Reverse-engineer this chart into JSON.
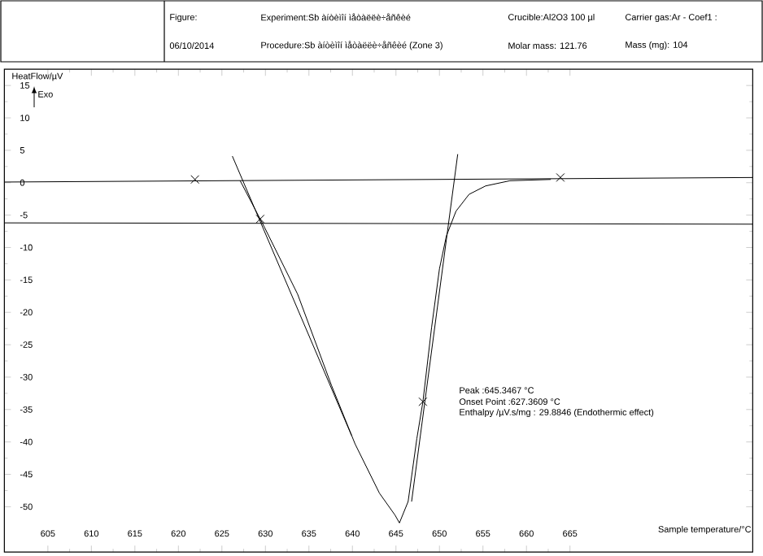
{
  "chart_data": {
    "type": "line",
    "xlabel": "Sample temperature/°C",
    "ylabel": "HeatFlow/µV",
    "xlim": [
      600,
      686
    ],
    "ylim": [
      -57,
      17.5
    ],
    "xticks": [
      605,
      610,
      615,
      620,
      625,
      630,
      635,
      640,
      645,
      650,
      655,
      660,
      665
    ],
    "yticks": [
      -50,
      -45,
      -40,
      -35,
      -30,
      -25,
      -20,
      -15,
      -10,
      -5,
      0,
      5,
      10,
      15
    ],
    "series": [
      {
        "color": "#000000",
        "x": [
          627.1,
          629.9,
          633.7,
          637.6,
          640.3,
          643.1,
          644.9,
          645.4,
          646.4,
          647.4,
          648.1,
          649.1,
          650.0,
          650.8,
          651.9,
          653.4,
          655.3,
          658.1,
          662.8
        ],
        "values": [
          0.3,
          -6.9,
          -17.2,
          -31.3,
          -40.3,
          -47.9,
          -51.3,
          -52.5,
          -49.2,
          -39.5,
          -33.8,
          -22.3,
          -13.3,
          -8.2,
          -4.4,
          -1.8,
          -0.5,
          0.3,
          0.5
        ]
      },
      {
        "color": "#000000",
        "x": [
          600,
          686
        ],
        "values": [
          0.1,
          0.8
        ]
      },
      {
        "color": "#000000",
        "x": [
          600,
          686
        ],
        "values": [
          -6.2,
          -6.4
        ]
      },
      {
        "color": "#000000",
        "x": [
          626.2,
          639.9
        ],
        "values": [
          4.1,
          -39.0
        ]
      },
      {
        "color": "#000000",
        "x": [
          652.1,
          646.8
        ],
        "values": [
          4.4,
          -49.2
        ]
      },
      {
        "type": "scatter",
        "color": "#000000",
        "marker": "cross",
        "x": [
          621.9,
          629.4,
          648.1,
          663.9
        ],
        "values": [
          0.5,
          -5.6,
          -33.8,
          0.8
        ]
      }
    ],
    "annotations": [
      "Figure:",
      "Experiment:Sb àíòèìîí ìåòàëëè÷åñêèé",
      "Crucible:Al2O3 100 µl",
      "Carrier gas:Ar - Coef1 :",
      "06/10/2014",
      "Procedure:Sb àíòèìîí ìåòàëëè÷åñêèé (Zone 3)",
      "Molar mass: 121.76",
      "Mass (mg): 104",
      "Peak :645.3467 °C",
      "Onset Point :627.3609 °C",
      "Enthalpy /µV.s/mg : 29.8846 (Endothermic effect)",
      "Exo"
    ]
  }
}
